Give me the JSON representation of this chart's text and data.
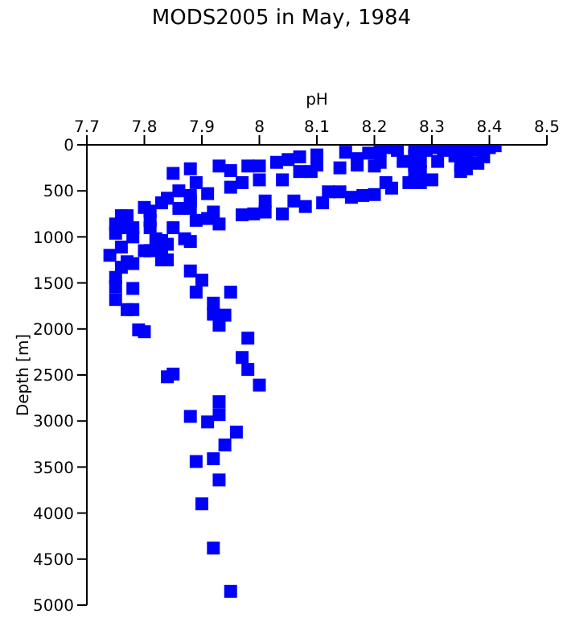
{
  "chart_data": {
    "type": "scatter",
    "title": "MODS2005 in May, 1984",
    "xlabel": "pH",
    "ylabel": "Depth [m]",
    "xlim": [
      7.7,
      8.5
    ],
    "xticks": [
      7.7,
      7.8,
      7.9,
      8,
      8.1,
      8.2,
      8.3,
      8.4,
      8.5
    ],
    "ylim": [
      5000,
      0
    ],
    "yticks": [
      0,
      500,
      1000,
      1500,
      2000,
      2500,
      3000,
      3500,
      4000,
      4500,
      5000
    ],
    "marker": "square",
    "series": [
      {
        "color": "#0000ff",
        "x": [
          7.76,
          7.77,
          7.78,
          7.83,
          7.84,
          7.88,
          7.9,
          7.75,
          7.75,
          7.78,
          7.89,
          7.95,
          7.75,
          7.92,
          7.77,
          7.78,
          7.92,
          7.94,
          7.93,
          7.79,
          7.8,
          7.98,
          7.97,
          7.98,
          8.0,
          7.84,
          7.85,
          7.93,
          7.88,
          7.93,
          7.91,
          7.96,
          7.94,
          7.89,
          7.92,
          7.93,
          7.9,
          7.92,
          7.95,
          7.76,
          7.77,
          7.75,
          7.76,
          7.78,
          7.78,
          7.75,
          7.74,
          7.76,
          7.8,
          7.81,
          7.81,
          7.81,
          7.8,
          7.81,
          7.82,
          7.83,
          7.83,
          7.83,
          7.84,
          7.86,
          7.85,
          7.86,
          7.85,
          7.84,
          7.87,
          7.88,
          7.88,
          7.88,
          7.88,
          7.89,
          7.89,
          7.88,
          7.91,
          7.92,
          7.91,
          7.93,
          7.93,
          7.95,
          7.95,
          7.97,
          7.97,
          7.98,
          8.0,
          8.0,
          7.99,
          8.01,
          8.01,
          8.03,
          8.04,
          8.04,
          8.05,
          8.06,
          8.07,
          8.07,
          8.08,
          8.09,
          8.1,
          8.1,
          8.11,
          8.12,
          8.14,
          8.14,
          8.15,
          8.16,
          8.17,
          8.17,
          8.18,
          8.2,
          8.2,
          8.21,
          8.21,
          8.22,
          8.23,
          8.23,
          8.24,
          8.25,
          8.26,
          8.27,
          8.27,
          8.27,
          8.27,
          8.28,
          8.28,
          8.3,
          8.29,
          8.3,
          8.31,
          8.32,
          8.33,
          8.34,
          8.35,
          8.35,
          8.36,
          8.36,
          8.37,
          8.38,
          8.39,
          8.39,
          8.4,
          8.41,
          8.28,
          8.35,
          8.19
        ],
        "values": [
          1330,
          1270,
          1290,
          1250,
          1250,
          1370,
          1470,
          1440,
          1540,
          1560,
          1600,
          1600,
          1680,
          1720,
          1790,
          1790,
          1840,
          1850,
          1960,
          2010,
          2030,
          2100,
          2310,
          2440,
          2610,
          2520,
          2490,
          2790,
          2950,
          2930,
          3010,
          3120,
          3260,
          3440,
          3410,
          3640,
          3900,
          4380,
          4850,
          770,
          770,
          860,
          900,
          900,
          1000,
          960,
          1200,
          1110,
          680,
          720,
          820,
          900,
          1150,
          1150,
          1020,
          1040,
          1150,
          630,
          580,
          500,
          310,
          690,
          900,
          1080,
          1020,
          550,
          610,
          260,
          690,
          410,
          820,
          1050,
          530,
          730,
          800,
          230,
          860,
          280,
          460,
          410,
          760,
          230,
          230,
          380,
          750,
          610,
          730,
          190,
          380,
          750,
          160,
          610,
          130,
          290,
          670,
          290,
          110,
          220,
          630,
          510,
          250,
          510,
          80,
          570,
          150,
          220,
          550,
          540,
          230,
          60,
          190,
          410,
          470,
          30,
          60,
          180,
          410,
          30,
          120,
          230,
          290,
          290,
          410,
          380,
          60,
          30,
          180,
          60,
          30,
          120,
          220,
          290,
          260,
          180,
          60,
          200,
          130,
          30,
          30,
          10,
          180,
          60,
          90
        ]
      }
    ]
  }
}
